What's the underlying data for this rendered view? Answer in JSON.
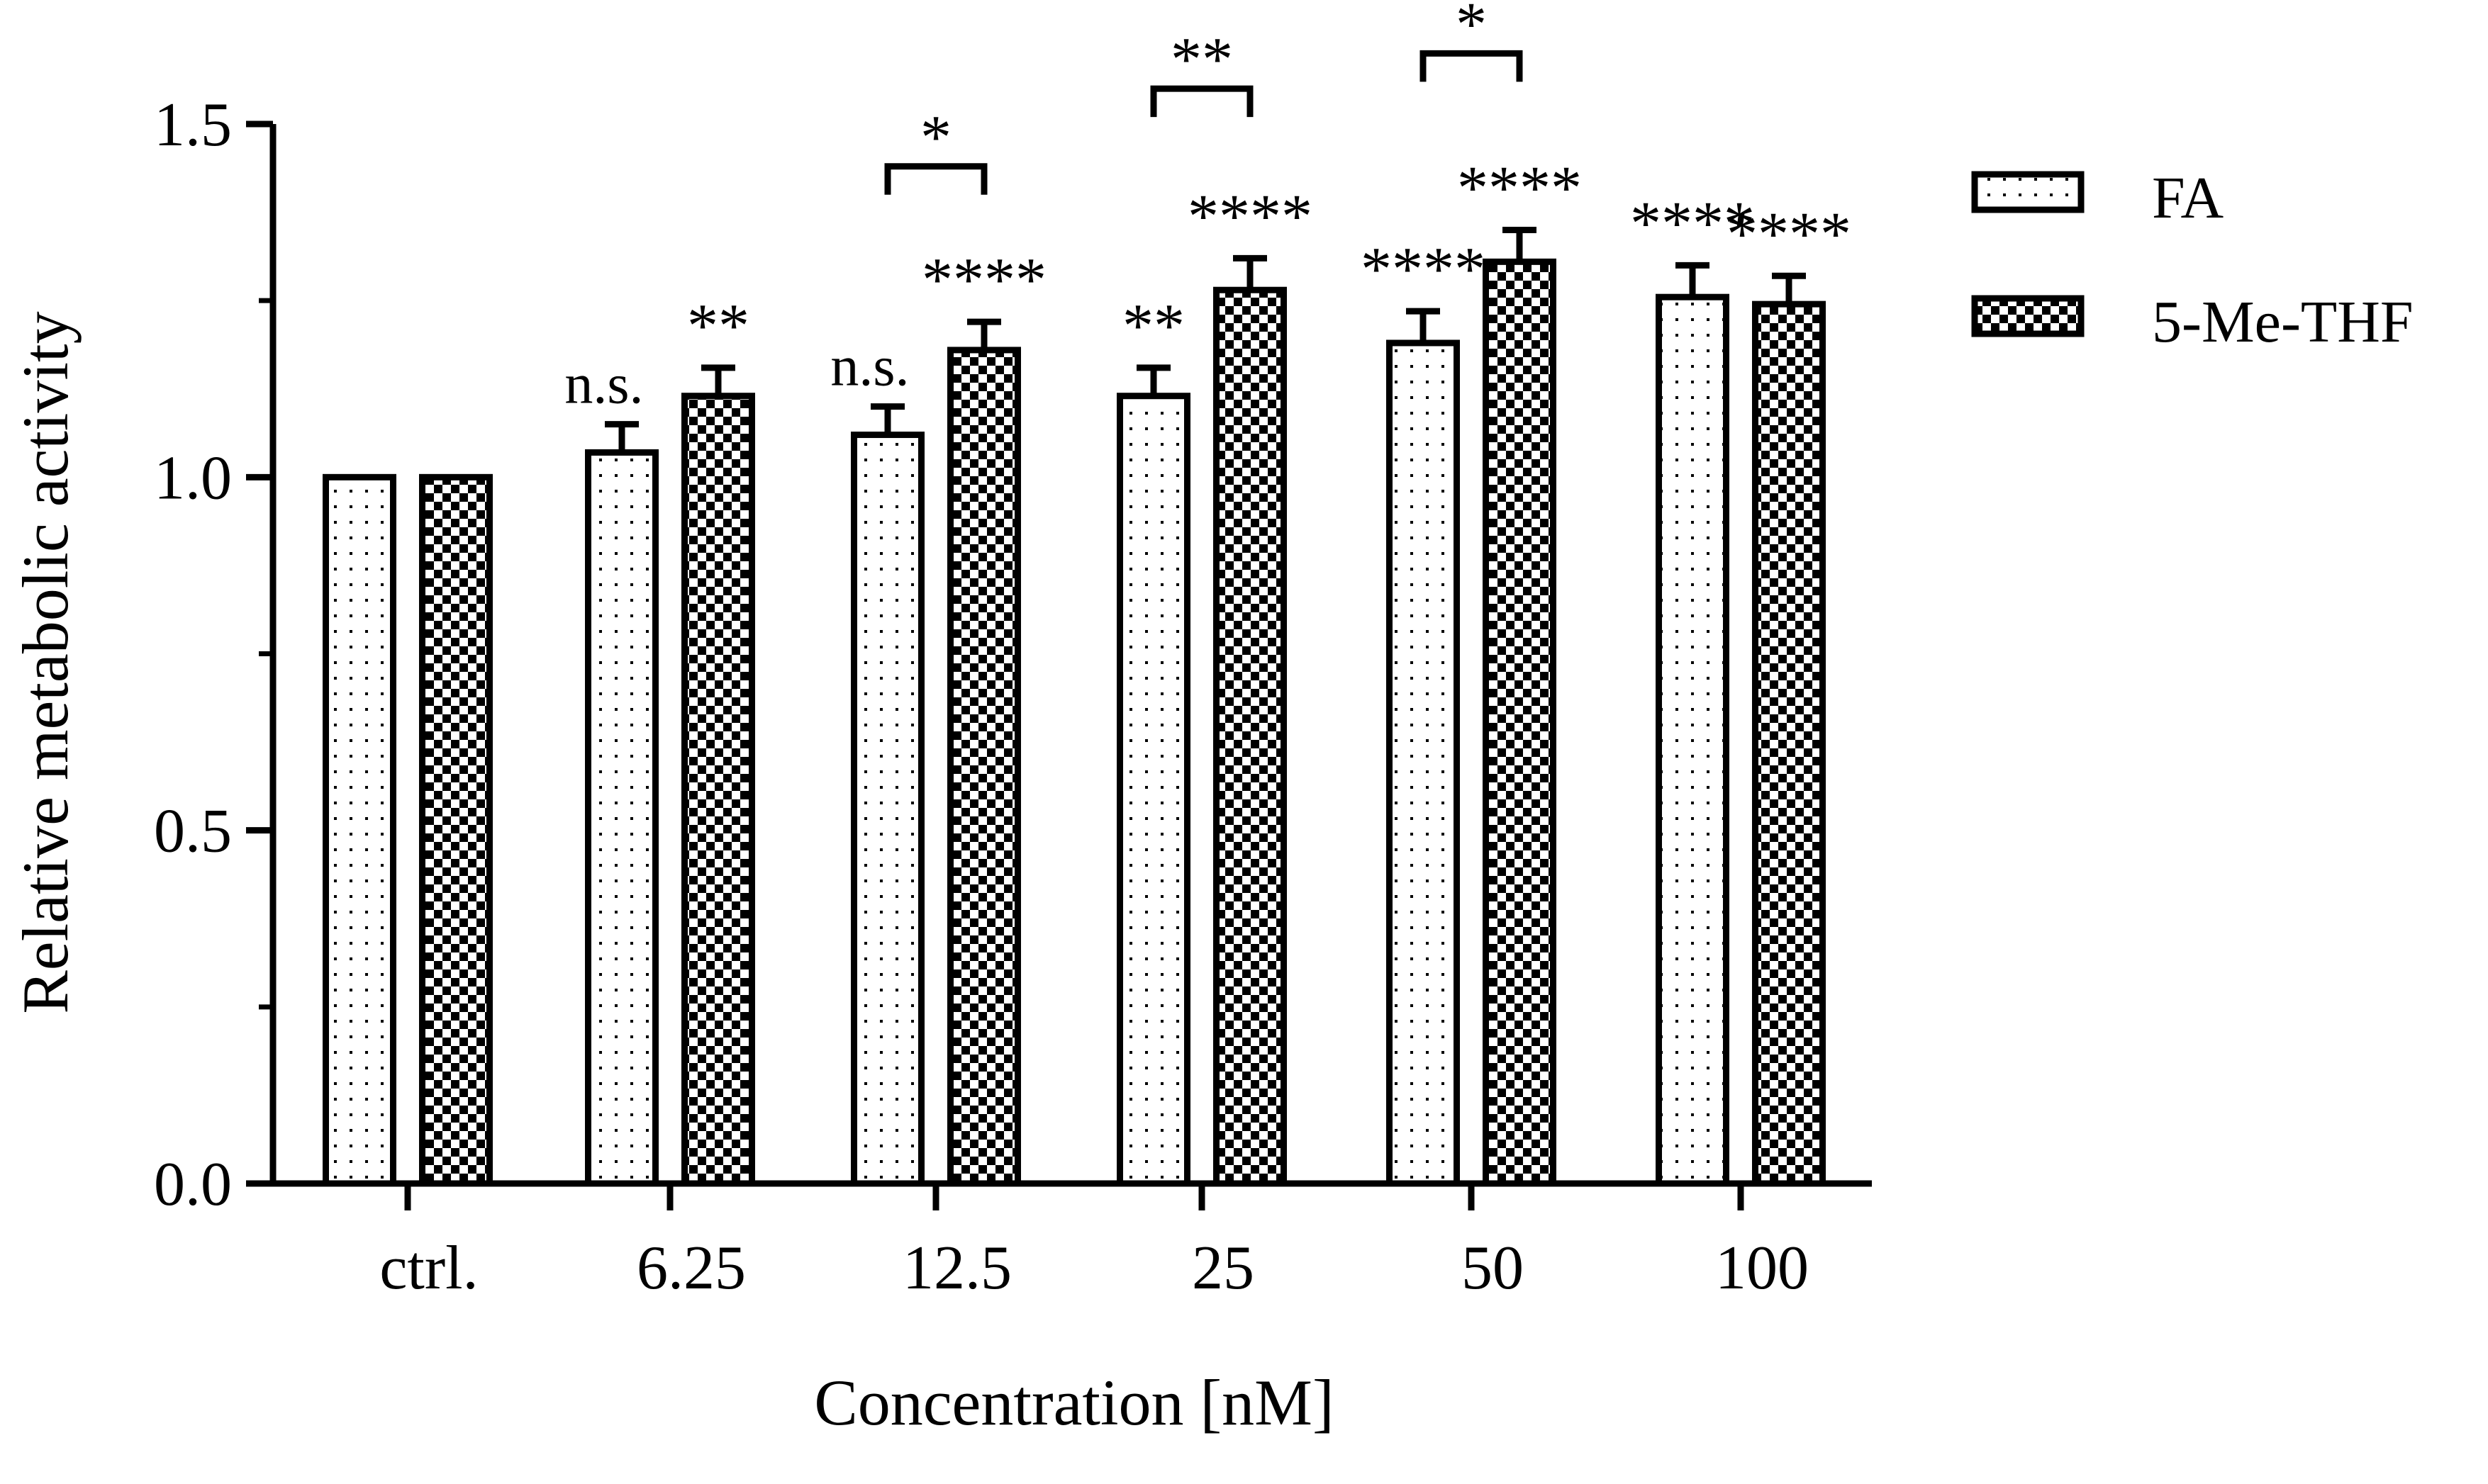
{
  "chart_data": {
    "type": "bar",
    "title": "",
    "xlabel": "Concentration [nM]",
    "ylabel": "Relative metabolic activity",
    "ylim": [
      0,
      1.5
    ],
    "yticks": [
      0.0,
      0.5,
      1.0,
      1.5
    ],
    "ytick_labels": [
      "0.0",
      "0.5",
      "1.0",
      "1.5"
    ],
    "categories": [
      "ctrl.",
      "6.25",
      "12.5",
      "25",
      "50",
      "100"
    ],
    "grid": false,
    "legend_position": "top-right",
    "series": [
      {
        "name": "FA",
        "pattern": "dots",
        "values": [
          1.0,
          1.035,
          1.06,
          1.115,
          1.19,
          1.255
        ],
        "errors": [
          0.0,
          0.04,
          0.04,
          0.04,
          0.045,
          0.045
        ],
        "annotations": [
          "",
          "n.s.",
          "n.s.",
          "**",
          "****",
          "****"
        ]
      },
      {
        "name": "5-Me-THF",
        "pattern": "checker",
        "values": [
          1.0,
          1.115,
          1.18,
          1.265,
          1.305,
          1.245
        ],
        "errors": [
          0.0,
          0.04,
          0.04,
          0.045,
          0.045,
          0.04
        ],
        "annotations": [
          "",
          "**",
          "****",
          "****",
          "****",
          "****"
        ]
      }
    ],
    "comparisons": [
      {
        "category": "12.5",
        "label": "*",
        "y": 1.44
      },
      {
        "category": "25",
        "label": "**",
        "y": 1.55
      },
      {
        "category": "50",
        "label": "*",
        "y": 1.6
      }
    ],
    "colors": {
      "stroke": "#000000",
      "fill": "#ffffff"
    }
  }
}
